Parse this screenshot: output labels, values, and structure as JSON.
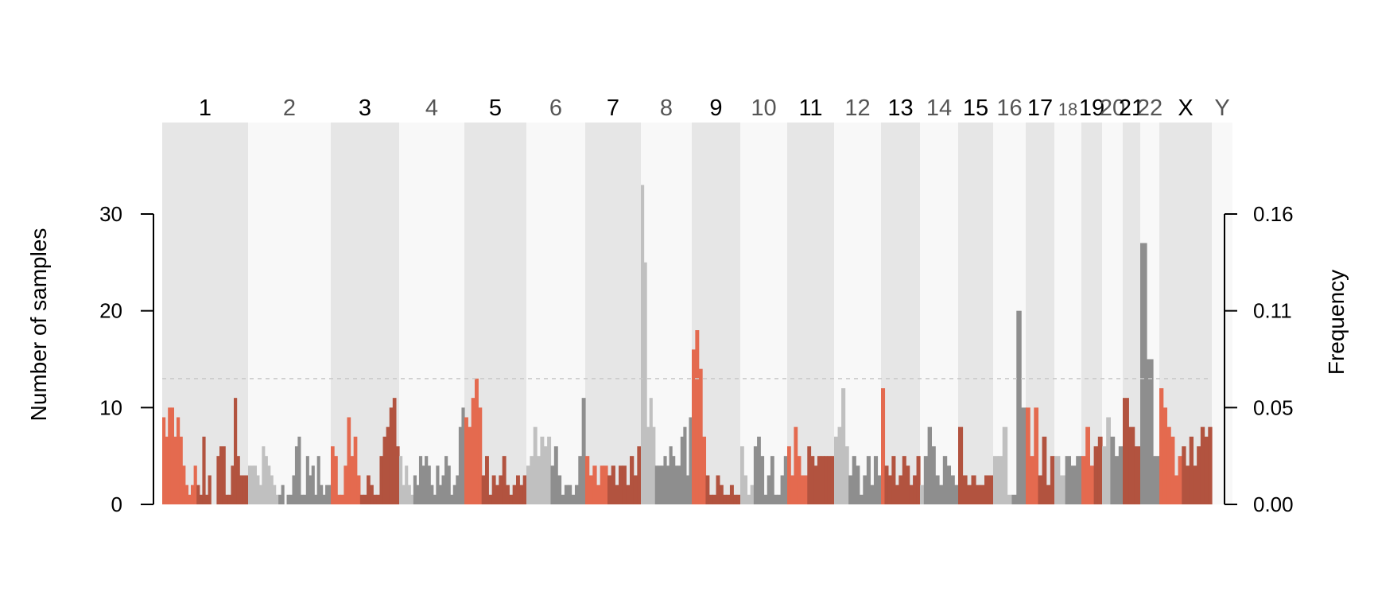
{
  "chart_data": {
    "type": "bar",
    "ylabel": "Number of samples",
    "y2label": "Frequency",
    "ylim": [
      0,
      30
    ],
    "left_ticks": [
      "0",
      "10",
      "20",
      "30"
    ],
    "right_ticks": [
      "0.00",
      "0.05",
      "0.11",
      "0.16"
    ],
    "threshold": 13,
    "colors": {
      "odd_light": "#e46a4f",
      "odd_dark": "#b2533f",
      "even_light": "#c0c0c0",
      "even_dark": "#8e8e8e",
      "band_odd": "#e6e6e6",
      "band_even": "#f8f8f8",
      "label_odd": "#000000",
      "label_even": "#555555",
      "threshold_line": "#c8c8c8"
    },
    "chromosomes": [
      {
        "name": "1",
        "arm_split": 0.4,
        "values": [
          9,
          7,
          10,
          10,
          7,
          9,
          7,
          4,
          2,
          1,
          2,
          4,
          2,
          1,
          7,
          1,
          3,
          0,
          0,
          5,
          6,
          6,
          1,
          1,
          4,
          11,
          5,
          3,
          3,
          3
        ]
      },
      {
        "name": "2",
        "arm_split": 0.38,
        "values": [
          4,
          4,
          4,
          3,
          2,
          6,
          5,
          4,
          3,
          2,
          1,
          1,
          2,
          0,
          1,
          1,
          3,
          6,
          7,
          1,
          1,
          5,
          3,
          4,
          1,
          5,
          2,
          1,
          2,
          2
        ]
      },
      {
        "name": "3",
        "arm_split": 0.45,
        "values": [
          6,
          5,
          1,
          1,
          4,
          9,
          5,
          7,
          3,
          1,
          1,
          3,
          2,
          1,
          1,
          5,
          7,
          8,
          10,
          11,
          6
        ]
      },
      {
        "name": "4",
        "arm_split": 0.2,
        "values": [
          5,
          2,
          4,
          2,
          1,
          3,
          2,
          5,
          4,
          5,
          4,
          2,
          1,
          4,
          2,
          3,
          5,
          4,
          1,
          2,
          3,
          8,
          10
        ]
      },
      {
        "name": "5",
        "arm_split": 0.3,
        "values": [
          9,
          8,
          11,
          13,
          10,
          3,
          5,
          1,
          3,
          2,
          3,
          5,
          2,
          1,
          2,
          3,
          2,
          3
        ]
      },
      {
        "name": "6",
        "arm_split": 0.4,
        "values": [
          4,
          5,
          8,
          5,
          7,
          6,
          7,
          4,
          6,
          3,
          1,
          2,
          2,
          1,
          2,
          5,
          11
        ]
      },
      {
        "name": "7",
        "arm_split": 0.4,
        "values": [
          5,
          3,
          4,
          2,
          4,
          4,
          3,
          4,
          2,
          4,
          4,
          2,
          5,
          3,
          6
        ]
      },
      {
        "name": "8",
        "arm_split": 0.3,
        "values": [
          33,
          25,
          8,
          11,
          8,
          4,
          4,
          4,
          5,
          4,
          6,
          5,
          4,
          4,
          7,
          8,
          3,
          9
        ]
      },
      {
        "name": "9",
        "arm_split": 0.25,
        "values": [
          16,
          18,
          14,
          7,
          3,
          1,
          1,
          3,
          2,
          1,
          1,
          2,
          1,
          1
        ]
      },
      {
        "name": "10",
        "arm_split": 0.3,
        "values": [
          6,
          3,
          1,
          2,
          6,
          7,
          5,
          1,
          3,
          5,
          1,
          1,
          3,
          5
        ]
      },
      {
        "name": "11",
        "arm_split": 0.42,
        "values": [
          6,
          3,
          8,
          5,
          3,
          3,
          6,
          5,
          4,
          5,
          5,
          5,
          5,
          5
        ]
      },
      {
        "name": "12",
        "arm_split": 0.3,
        "values": [
          7,
          8,
          12,
          6,
          3,
          5,
          4,
          1,
          3,
          5,
          2,
          5,
          3
        ]
      },
      {
        "name": "13",
        "arm_split": 0.05,
        "values": [
          12,
          4,
          3,
          5,
          2,
          3,
          5,
          4,
          2,
          3,
          5
        ]
      },
      {
        "name": "14",
        "arm_split": 0.05,
        "values": [
          2,
          5,
          8,
          6,
          3,
          2,
          5,
          4,
          3,
          2
        ]
      },
      {
        "name": "15",
        "arm_split": 0.05,
        "values": [
          8,
          3,
          2,
          3,
          2,
          2,
          3,
          3
        ]
      },
      {
        "name": "16",
        "arm_split": 0.5,
        "values": [
          5,
          5,
          8,
          1,
          1,
          20,
          10
        ]
      },
      {
        "name": "17",
        "arm_split": 0.4,
        "values": [
          10,
          5,
          10,
          3,
          7,
          2,
          5
        ]
      },
      {
        "name": "18",
        "arm_split": 0.3,
        "values": [
          5,
          3,
          5,
          4,
          5
        ]
      },
      {
        "name": "19",
        "arm_split": 0.5,
        "values": [
          5,
          8,
          4,
          6,
          7
        ]
      },
      {
        "name": "20",
        "arm_split": 0.45,
        "values": [
          6,
          9,
          7,
          5,
          6
        ]
      },
      {
        "name": "21",
        "arm_split": 0.05,
        "values": [
          11,
          8,
          6
        ]
      },
      {
        "name": "22",
        "arm_split": 0.05,
        "values": [
          27,
          15,
          5
        ]
      },
      {
        "name": "X",
        "arm_split": 0.45,
        "values": [
          12,
          10,
          8,
          7,
          3,
          5,
          6,
          4,
          7,
          4,
          6,
          8,
          7,
          8
        ]
      },
      {
        "name": "Y",
        "arm_split": 0.5,
        "values": []
      }
    ]
  }
}
